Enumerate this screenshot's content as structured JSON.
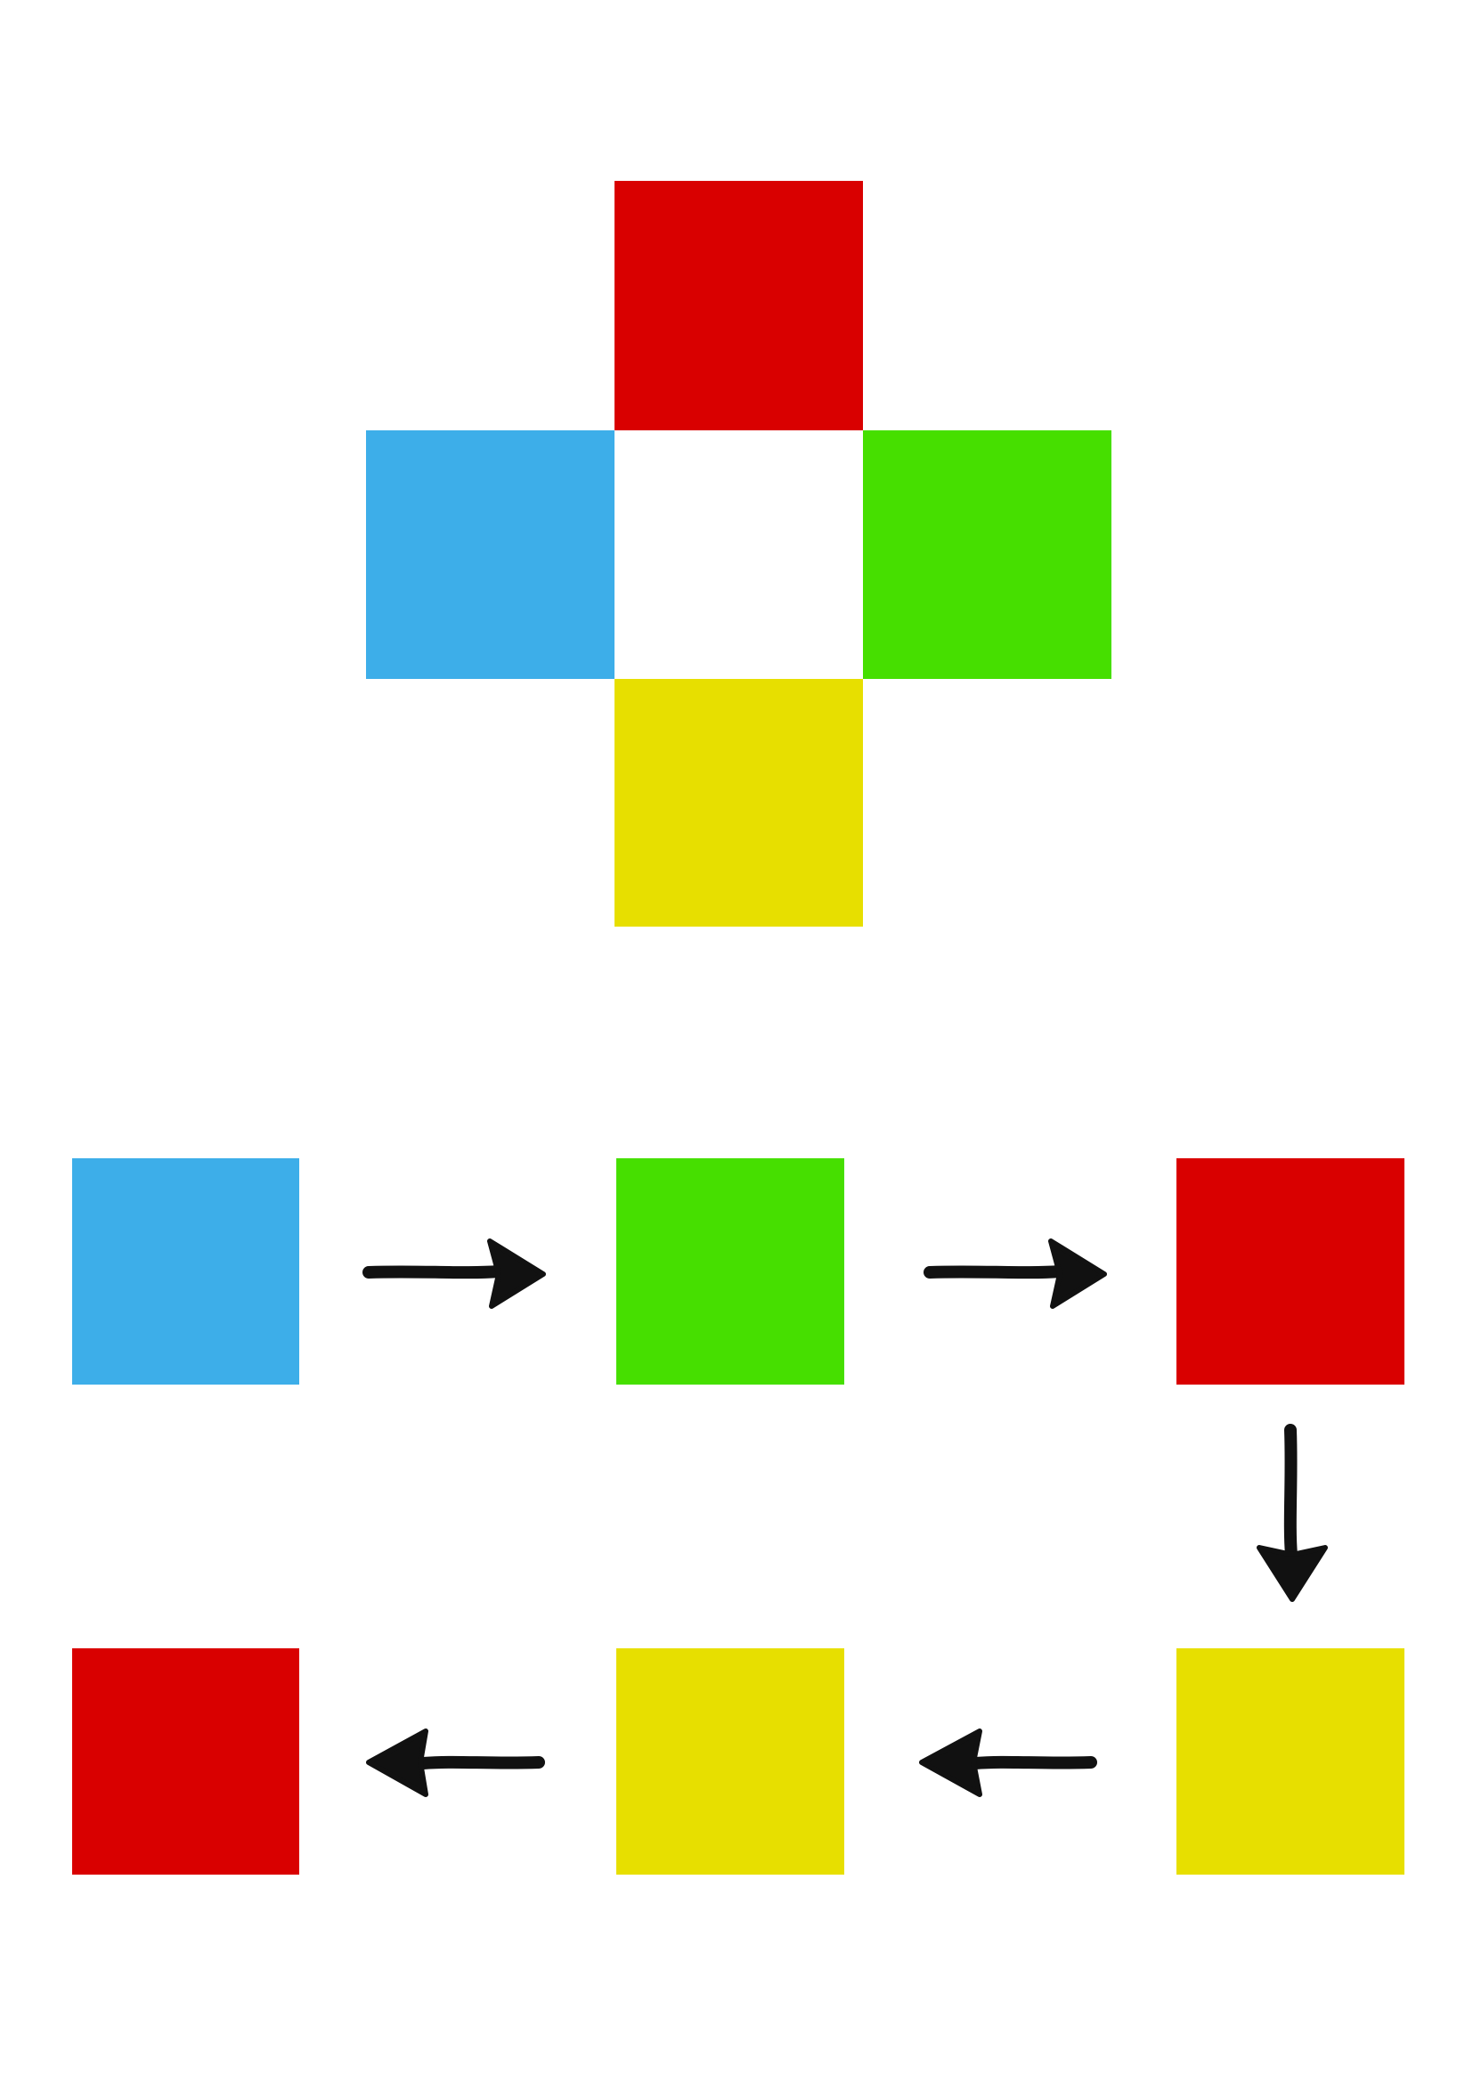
{
  "colors": {
    "red": "#d90000",
    "blue": "#3daee9",
    "green": "#46df00",
    "yellow": "#e7df00",
    "white": "#ffffff",
    "arrow": "#111111"
  },
  "cross": {
    "top": "red",
    "left": "blue",
    "center": "white",
    "right": "green",
    "bottom": "yellow"
  },
  "sequence": [
    "blue",
    "green",
    "red",
    "yellow",
    "yellow",
    "red"
  ],
  "arrows": [
    {
      "from": 1,
      "to": 2,
      "direction": "right"
    },
    {
      "from": 2,
      "to": 3,
      "direction": "right"
    },
    {
      "from": 3,
      "to": 4,
      "direction": "down"
    },
    {
      "from": 4,
      "to": 5,
      "direction": "left"
    },
    {
      "from": 5,
      "to": 6,
      "direction": "left"
    }
  ]
}
